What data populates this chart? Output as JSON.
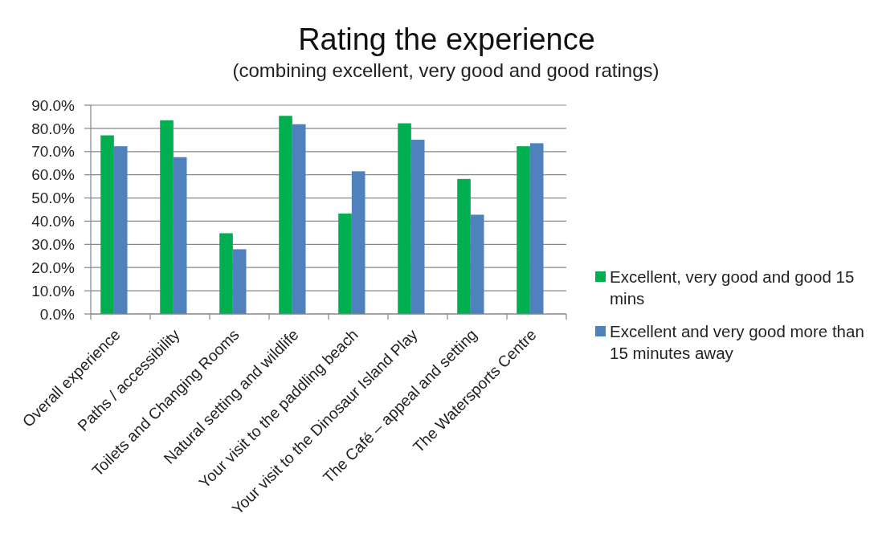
{
  "chart_data": {
    "type": "bar",
    "title": "Rating the experience",
    "subtitle": "(combining excellent, very good and good ratings)",
    "categories": [
      "Overall experience",
      "Paths / accessibility",
      "Toilets and Changing Rooms",
      "Natural setting and wildlife",
      "Your visit to the paddling beach",
      "Your visit to the Dinosaur Island Play",
      "The Café – appeal and setting",
      "The Watersports Centre"
    ],
    "series": [
      {
        "name": "Excellent, very good and good 15 mins",
        "color": "#00b050",
        "values": [
          77.0,
          83.5,
          34.8,
          85.4,
          43.3,
          82.2,
          58.2,
          72.3
        ]
      },
      {
        "name": "Excellent and very good more than 15 minutes away",
        "color": "#4f81bd",
        "values": [
          72.3,
          67.6,
          27.9,
          81.8,
          61.5,
          75.1,
          42.8,
          73.6
        ]
      }
    ],
    "ylim": [
      0,
      90
    ],
    "yticks": [
      {
        "value": 0,
        "label": "0.0%"
      },
      {
        "value": 10,
        "label": "10.0%"
      },
      {
        "value": 20,
        "label": "20.0%"
      },
      {
        "value": 30,
        "label": "30.0%"
      },
      {
        "value": 40,
        "label": "40.0%"
      },
      {
        "value": 50,
        "label": "50.0%"
      },
      {
        "value": 60,
        "label": "60.0%"
      },
      {
        "value": 70,
        "label": "70.0%"
      },
      {
        "value": 80,
        "label": "80.0%"
      },
      {
        "value": 90,
        "label": "90.0%"
      }
    ],
    "grid": "y",
    "legend": "right"
  }
}
